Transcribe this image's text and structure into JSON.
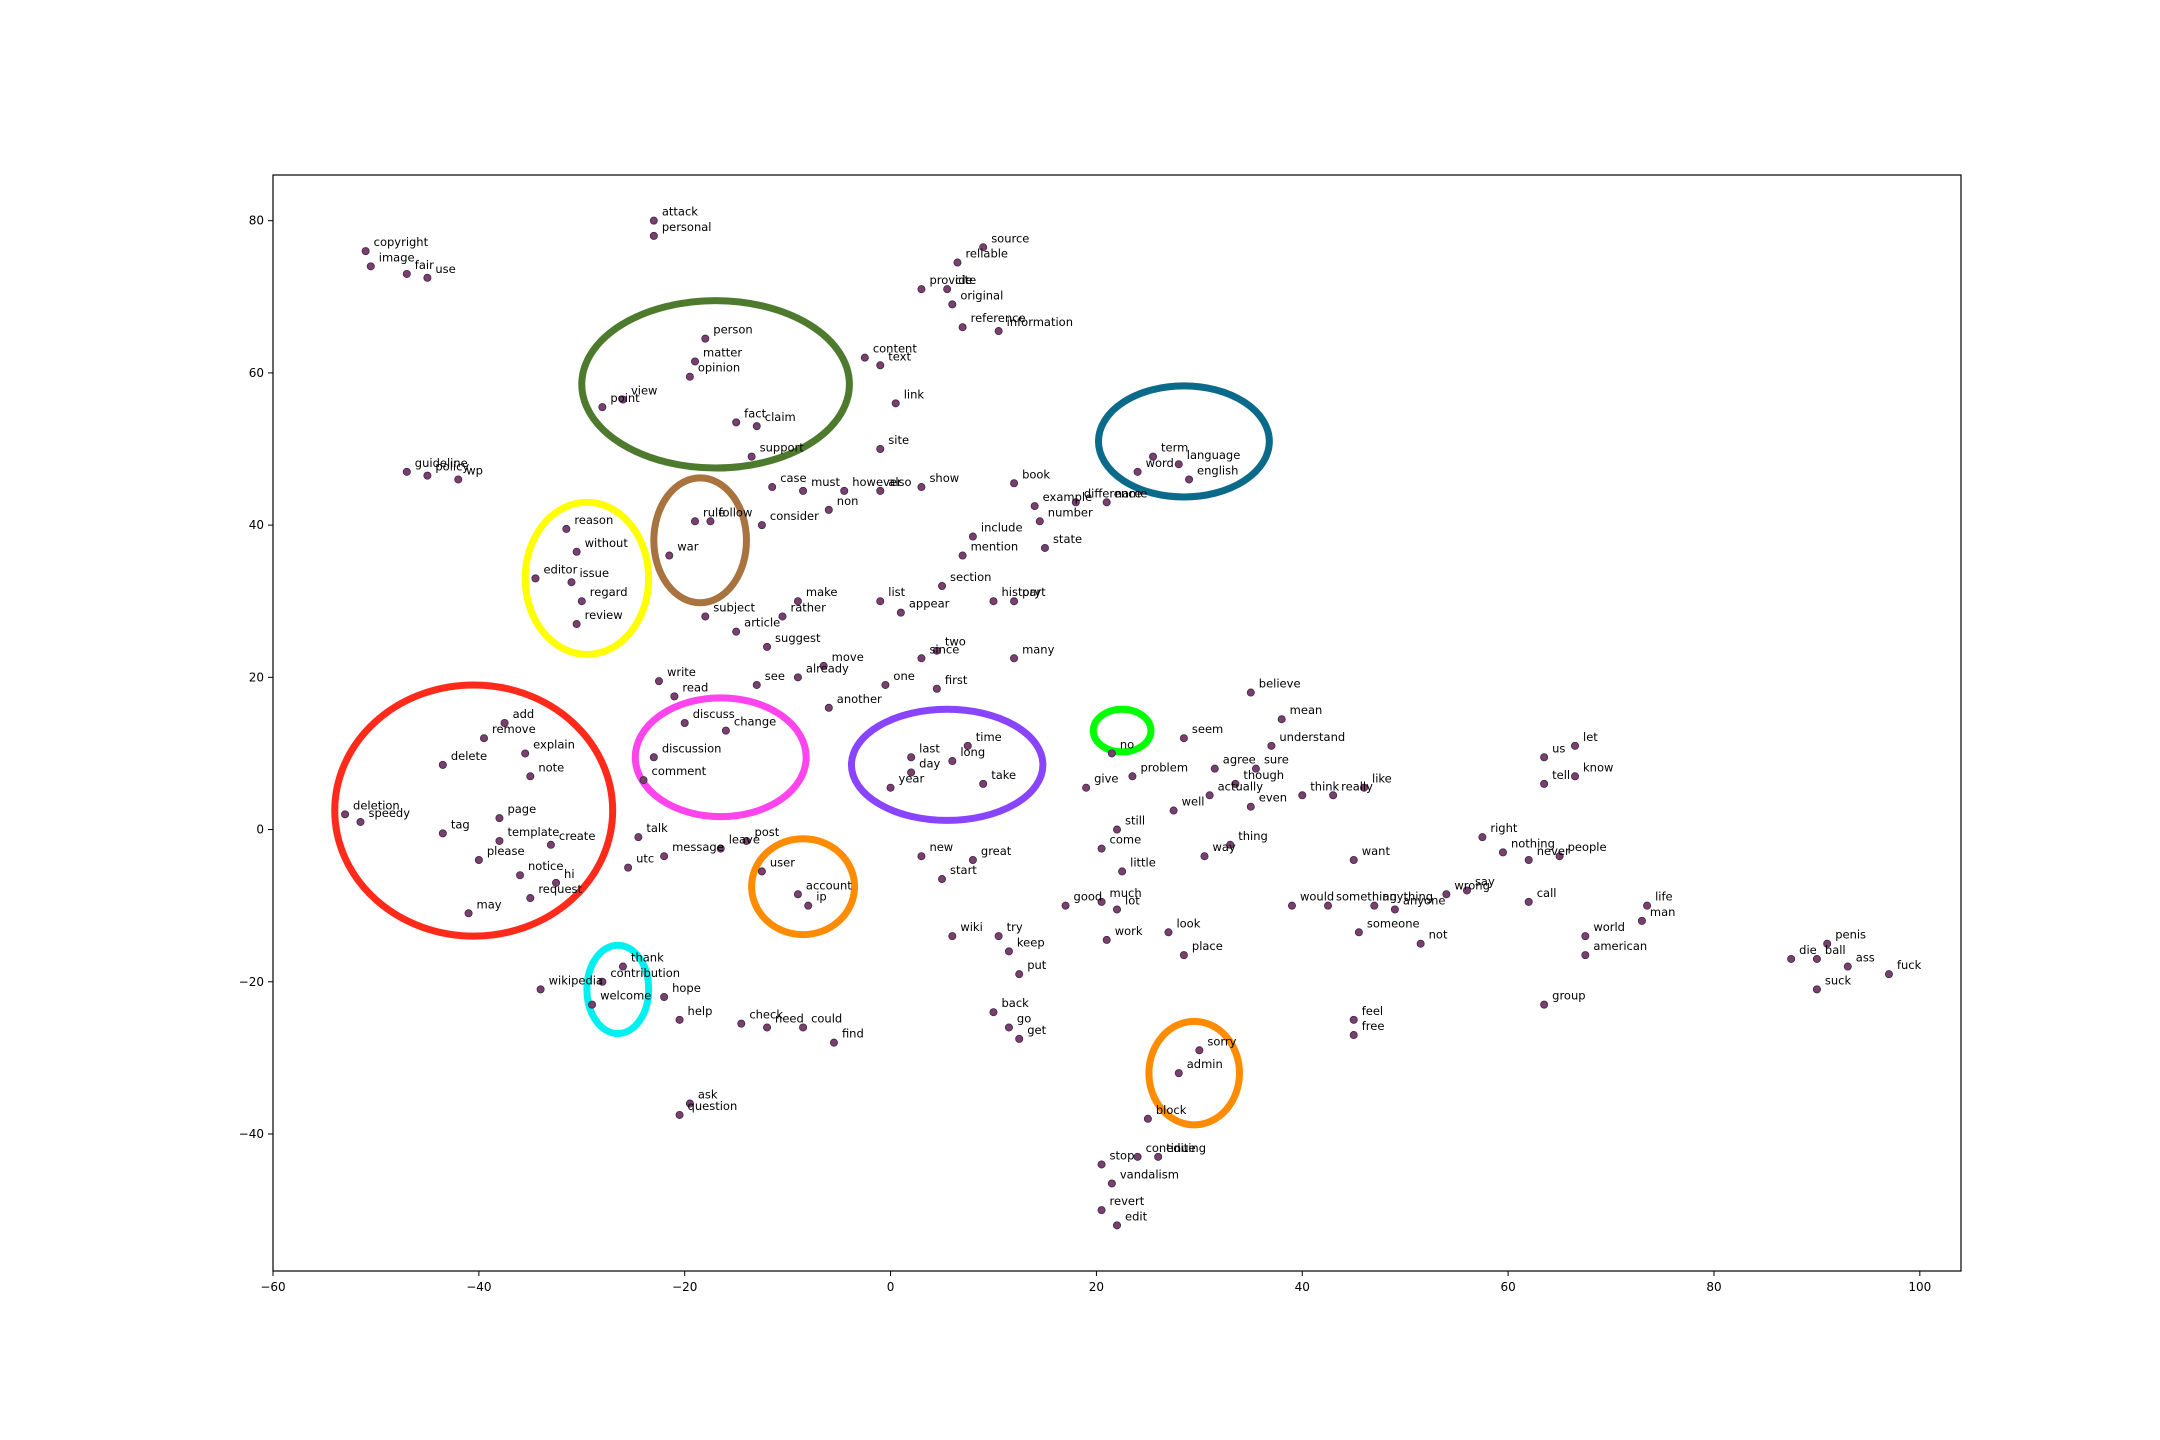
{
  "chart_data": {
    "type": "scatter",
    "title": "",
    "xlabel": "",
    "ylabel": "",
    "xlim": [
      -60,
      104
    ],
    "ylim": [
      -58,
      86
    ],
    "xticks": [
      -60,
      -40,
      -20,
      0,
      20,
      40,
      60,
      80,
      100
    ],
    "yticks": [
      -40,
      -20,
      0,
      20,
      40,
      60,
      80
    ],
    "grid": false,
    "legend": "none",
    "marker_color": "#7b3f6e",
    "points": [
      {
        "word": "copyright",
        "x": -51.0,
        "y": 76.0
      },
      {
        "word": "image",
        "x": -50.5,
        "y": 74.0
      },
      {
        "word": "fair",
        "x": -47.0,
        "y": 73.0
      },
      {
        "word": "use",
        "x": -45.0,
        "y": 72.5
      },
      {
        "word": "attack",
        "x": -23.0,
        "y": 80.0
      },
      {
        "word": "personal",
        "x": -23.0,
        "y": 78.0
      },
      {
        "word": "source",
        "x": 9.0,
        "y": 76.5
      },
      {
        "word": "reliable",
        "x": 6.5,
        "y": 74.5
      },
      {
        "word": "provide",
        "x": 3.0,
        "y": 71.0
      },
      {
        "word": "cite",
        "x": 5.5,
        "y": 71.0
      },
      {
        "word": "original",
        "x": 6.0,
        "y": 69.0
      },
      {
        "word": "reference",
        "x": 7.0,
        "y": 66.0
      },
      {
        "word": "information",
        "x": 10.5,
        "y": 65.5
      },
      {
        "word": "person",
        "x": -18.0,
        "y": 64.5
      },
      {
        "word": "matter",
        "x": -19.0,
        "y": 61.5
      },
      {
        "word": "opinion",
        "x": -19.5,
        "y": 59.5
      },
      {
        "word": "view",
        "x": -26.0,
        "y": 56.5
      },
      {
        "word": "point",
        "x": -28.0,
        "y": 55.5
      },
      {
        "word": "fact",
        "x": -15.0,
        "y": 53.5
      },
      {
        "word": "claim",
        "x": -13.0,
        "y": 53.0
      },
      {
        "word": "support",
        "x": -13.5,
        "y": 49.0
      },
      {
        "word": "content",
        "x": -2.5,
        "y": 62.0
      },
      {
        "word": "text",
        "x": -1.0,
        "y": 61.0
      },
      {
        "word": "link",
        "x": 0.5,
        "y": 56.0
      },
      {
        "word": "site",
        "x": -1.0,
        "y": 50.0
      },
      {
        "word": "guideline",
        "x": -47.0,
        "y": 47.0
      },
      {
        "word": "policy",
        "x": -45.0,
        "y": 46.5
      },
      {
        "word": "wp",
        "x": -42.0,
        "y": 46.0
      },
      {
        "word": "term",
        "x": 25.5,
        "y": 49.0
      },
      {
        "word": "language",
        "x": 28.0,
        "y": 48.0
      },
      {
        "word": "word",
        "x": 24.0,
        "y": 47.0
      },
      {
        "word": "english",
        "x": 29.0,
        "y": 46.0
      },
      {
        "word": "case",
        "x": -11.5,
        "y": 45.0
      },
      {
        "word": "must",
        "x": -8.5,
        "y": 44.5
      },
      {
        "word": "however",
        "x": -4.5,
        "y": 44.5
      },
      {
        "word": "also",
        "x": -1.0,
        "y": 44.5
      },
      {
        "word": "show",
        "x": 3.0,
        "y": 45.0
      },
      {
        "word": "non",
        "x": -6.0,
        "y": 42.0
      },
      {
        "word": "consider",
        "x": -12.5,
        "y": 40.0
      },
      {
        "word": "book",
        "x": 12.0,
        "y": 45.5
      },
      {
        "word": "example",
        "x": 14.0,
        "y": 42.5
      },
      {
        "word": "difference",
        "x": 18.0,
        "y": 43.0
      },
      {
        "word": "name",
        "x": 21.0,
        "y": 43.0
      },
      {
        "word": "number",
        "x": 14.5,
        "y": 40.5
      },
      {
        "word": "include",
        "x": 8.0,
        "y": 38.5
      },
      {
        "word": "mention",
        "x": 7.0,
        "y": 36.0
      },
      {
        "word": "state",
        "x": 15.0,
        "y": 37.0
      },
      {
        "word": "follow",
        "x": -17.5,
        "y": 40.5
      },
      {
        "word": "rule",
        "x": -19.0,
        "y": 40.5
      },
      {
        "word": "war",
        "x": -21.5,
        "y": 36.0
      },
      {
        "word": "reason",
        "x": -31.5,
        "y": 39.5
      },
      {
        "word": "without",
        "x": -30.5,
        "y": 36.5
      },
      {
        "word": "editor",
        "x": -34.5,
        "y": 33.0
      },
      {
        "word": "issue",
        "x": -31.0,
        "y": 32.5
      },
      {
        "word": "regard",
        "x": -30.0,
        "y": 30.0
      },
      {
        "word": "review",
        "x": -30.5,
        "y": 27.0
      },
      {
        "word": "subject",
        "x": -18.0,
        "y": 28.0
      },
      {
        "word": "article",
        "x": -15.0,
        "y": 26.0
      },
      {
        "word": "make",
        "x": -9.0,
        "y": 30.0
      },
      {
        "word": "rather",
        "x": -10.5,
        "y": 28.0
      },
      {
        "word": "suggest",
        "x": -12.0,
        "y": 24.0
      },
      {
        "word": "list",
        "x": -1.0,
        "y": 30.0
      },
      {
        "word": "appear",
        "x": 1.0,
        "y": 28.5
      },
      {
        "word": "section",
        "x": 5.0,
        "y": 32.0
      },
      {
        "word": "history",
        "x": 10.0,
        "y": 30.0
      },
      {
        "word": "part",
        "x": 12.0,
        "y": 30.0
      },
      {
        "word": "two",
        "x": 4.5,
        "y": 23.5
      },
      {
        "word": "since",
        "x": 3.0,
        "y": 22.5
      },
      {
        "word": "many",
        "x": 12.0,
        "y": 22.5
      },
      {
        "word": "move",
        "x": -6.5,
        "y": 21.5
      },
      {
        "word": "already",
        "x": -9.0,
        "y": 20.0
      },
      {
        "word": "see",
        "x": -13.0,
        "y": 19.0
      },
      {
        "word": "one",
        "x": -0.5,
        "y": 19.0
      },
      {
        "word": "first",
        "x": 4.5,
        "y": 18.5
      },
      {
        "word": "another",
        "x": -6.0,
        "y": 16.0
      },
      {
        "word": "write",
        "x": -22.5,
        "y": 19.5
      },
      {
        "word": "read",
        "x": -21.0,
        "y": 17.5
      },
      {
        "word": "discuss",
        "x": -20.0,
        "y": 14.0
      },
      {
        "word": "change",
        "x": -16.0,
        "y": 13.0
      },
      {
        "word": "discussion",
        "x": -23.0,
        "y": 9.5
      },
      {
        "word": "comment",
        "x": -24.0,
        "y": 6.5
      },
      {
        "word": "add",
        "x": -37.5,
        "y": 14.0
      },
      {
        "word": "remove",
        "x": -39.5,
        "y": 12.0
      },
      {
        "word": "explain",
        "x": -35.5,
        "y": 10.0
      },
      {
        "word": "delete",
        "x": -43.5,
        "y": 8.5
      },
      {
        "word": "note",
        "x": -35.0,
        "y": 7.0
      },
      {
        "word": "deletion",
        "x": -53.0,
        "y": 2.0
      },
      {
        "word": "speedy",
        "x": -51.5,
        "y": 1.0
      },
      {
        "word": "page",
        "x": -38.0,
        "y": 1.5
      },
      {
        "word": "tag",
        "x": -43.5,
        "y": -0.5
      },
      {
        "word": "template",
        "x": -38.0,
        "y": -1.5
      },
      {
        "word": "create",
        "x": -33.0,
        "y": -2.0
      },
      {
        "word": "please",
        "x": -40.0,
        "y": -4.0
      },
      {
        "word": "notice",
        "x": -36.0,
        "y": -6.0
      },
      {
        "word": "hi",
        "x": -32.5,
        "y": -7.0
      },
      {
        "word": "request",
        "x": -35.0,
        "y": -9.0
      },
      {
        "word": "may",
        "x": -41.0,
        "y": -11.0
      },
      {
        "word": "talk",
        "x": -24.5,
        "y": -1.0
      },
      {
        "word": "leave",
        "x": -16.5,
        "y": -2.5
      },
      {
        "word": "post",
        "x": -14.0,
        "y": -1.5
      },
      {
        "word": "message",
        "x": -22.0,
        "y": -3.5
      },
      {
        "word": "utc",
        "x": -25.5,
        "y": -5.0
      },
      {
        "word": "user",
        "x": -12.5,
        "y": -5.5
      },
      {
        "word": "account",
        "x": -9.0,
        "y": -8.5
      },
      {
        "word": "ip",
        "x": -8.0,
        "y": -10.0
      },
      {
        "word": "time",
        "x": 7.5,
        "y": 11.0
      },
      {
        "word": "last",
        "x": 2.0,
        "y": 9.5
      },
      {
        "word": "long",
        "x": 6.0,
        "y": 9.0
      },
      {
        "word": "day",
        "x": 2.0,
        "y": 7.5
      },
      {
        "word": "year",
        "x": 0.0,
        "y": 5.5
      },
      {
        "word": "take",
        "x": 9.0,
        "y": 6.0
      },
      {
        "word": "no",
        "x": 21.5,
        "y": 10.0
      },
      {
        "word": "seem",
        "x": 28.5,
        "y": 12.0
      },
      {
        "word": "believe",
        "x": 35.0,
        "y": 18.0
      },
      {
        "word": "mean",
        "x": 38.0,
        "y": 14.5
      },
      {
        "word": "understand",
        "x": 37.0,
        "y": 11.0
      },
      {
        "word": "agree",
        "x": 31.5,
        "y": 8.0
      },
      {
        "word": "sure",
        "x": 35.5,
        "y": 8.0
      },
      {
        "word": "give",
        "x": 19.0,
        "y": 5.5
      },
      {
        "word": "problem",
        "x": 23.5,
        "y": 7.0
      },
      {
        "word": "though",
        "x": 33.5,
        "y": 6.0
      },
      {
        "word": "actually",
        "x": 31.0,
        "y": 4.5
      },
      {
        "word": "even",
        "x": 35.0,
        "y": 3.0
      },
      {
        "word": "well",
        "x": 27.5,
        "y": 2.5
      },
      {
        "word": "think",
        "x": 40.0,
        "y": 4.5
      },
      {
        "word": "really",
        "x": 43.0,
        "y": 4.5
      },
      {
        "word": "like",
        "x": 46.0,
        "y": 5.5
      },
      {
        "word": "still",
        "x": 22.0,
        "y": 0.0
      },
      {
        "word": "come",
        "x": 20.5,
        "y": -2.5
      },
      {
        "word": "thing",
        "x": 33.0,
        "y": -2.0
      },
      {
        "word": "way",
        "x": 30.5,
        "y": -3.5
      },
      {
        "word": "little",
        "x": 22.5,
        "y": -5.5
      },
      {
        "word": "new",
        "x": 3.0,
        "y": -3.5
      },
      {
        "word": "great",
        "x": 8.0,
        "y": -4.0
      },
      {
        "word": "start",
        "x": 5.0,
        "y": -6.5
      },
      {
        "word": "good",
        "x": 17.0,
        "y": -10.0
      },
      {
        "word": "much",
        "x": 20.5,
        "y": -9.5
      },
      {
        "word": "lot",
        "x": 22.0,
        "y": -10.5
      },
      {
        "word": "look",
        "x": 27.0,
        "y": -13.5
      },
      {
        "word": "work",
        "x": 21.0,
        "y": -14.5
      },
      {
        "word": "place",
        "x": 28.5,
        "y": -16.5
      },
      {
        "word": "wiki",
        "x": 6.0,
        "y": -14.0
      },
      {
        "word": "try",
        "x": 10.5,
        "y": -14.0
      },
      {
        "word": "keep",
        "x": 11.5,
        "y": -16.0
      },
      {
        "word": "put",
        "x": 12.5,
        "y": -19.0
      },
      {
        "word": "back",
        "x": 10.0,
        "y": -24.0
      },
      {
        "word": "go",
        "x": 11.5,
        "y": -26.0
      },
      {
        "word": "get",
        "x": 12.5,
        "y": -27.5
      },
      {
        "word": "want",
        "x": 45.0,
        "y": -4.0
      },
      {
        "word": "would",
        "x": 39.0,
        "y": -10.0
      },
      {
        "word": "something",
        "x": 42.5,
        "y": -10.0
      },
      {
        "word": "anything",
        "x": 47.0,
        "y": -10.0
      },
      {
        "word": "anyone",
        "x": 49.0,
        "y": -10.5
      },
      {
        "word": "wrong",
        "x": 54.0,
        "y": -8.5
      },
      {
        "word": "say",
        "x": 56.0,
        "y": -8.0
      },
      {
        "word": "someone",
        "x": 45.5,
        "y": -13.5
      },
      {
        "word": "not",
        "x": 51.5,
        "y": -15.0
      },
      {
        "word": "right",
        "x": 57.5,
        "y": -1.0
      },
      {
        "word": "nothing",
        "x": 59.5,
        "y": -3.0
      },
      {
        "word": "never",
        "x": 62.0,
        "y": -4.0
      },
      {
        "word": "people",
        "x": 65.0,
        "y": -3.5
      },
      {
        "word": "call",
        "x": 62.0,
        "y": -9.5
      },
      {
        "word": "let",
        "x": 66.5,
        "y": 11.0
      },
      {
        "word": "us",
        "x": 63.5,
        "y": 9.5
      },
      {
        "word": "know",
        "x": 66.5,
        "y": 7.0
      },
      {
        "word": "tell",
        "x": 63.5,
        "y": 6.0
      },
      {
        "word": "life",
        "x": 73.5,
        "y": -10.0
      },
      {
        "word": "man",
        "x": 73.0,
        "y": -12.0
      },
      {
        "word": "world",
        "x": 67.5,
        "y": -14.0
      },
      {
        "word": "american",
        "x": 67.5,
        "y": -16.5
      },
      {
        "word": "group",
        "x": 63.5,
        "y": -23.0
      },
      {
        "word": "penis",
        "x": 91.0,
        "y": -15.0
      },
      {
        "word": "die",
        "x": 87.5,
        "y": -17.0
      },
      {
        "word": "ball",
        "x": 90.0,
        "y": -17.0
      },
      {
        "word": "ass",
        "x": 93.0,
        "y": -18.0
      },
      {
        "word": "fuck",
        "x": 97.0,
        "y": -19.0
      },
      {
        "word": "suck",
        "x": 90.0,
        "y": -21.0
      },
      {
        "word": "thank",
        "x": -26.0,
        "y": -18.0
      },
      {
        "word": "contribution",
        "x": -28.0,
        "y": -20.0
      },
      {
        "word": "wikipedia",
        "x": -34.0,
        "y": -21.0
      },
      {
        "word": "welcome",
        "x": -29.0,
        "y": -23.0
      },
      {
        "word": "hope",
        "x": -22.0,
        "y": -22.0
      },
      {
        "word": "help",
        "x": -20.5,
        "y": -25.0
      },
      {
        "word": "check",
        "x": -14.5,
        "y": -25.5
      },
      {
        "word": "need",
        "x": -12.0,
        "y": -26.0
      },
      {
        "word": "could",
        "x": -8.5,
        "y": -26.0
      },
      {
        "word": "find",
        "x": -5.5,
        "y": -28.0
      },
      {
        "word": "ask",
        "x": -19.5,
        "y": -36.0
      },
      {
        "word": "question",
        "x": -20.5,
        "y": -37.5
      },
      {
        "word": "feel",
        "x": 45.0,
        "y": -25.0
      },
      {
        "word": "free",
        "x": 45.0,
        "y": -27.0
      },
      {
        "word": "sorry",
        "x": 30.0,
        "y": -29.0
      },
      {
        "word": "admin",
        "x": 28.0,
        "y": -32.0
      },
      {
        "word": "block",
        "x": 25.0,
        "y": -38.0
      },
      {
        "word": "stop",
        "x": 20.5,
        "y": -44.0
      },
      {
        "word": "continue",
        "x": 24.0,
        "y": -43.0
      },
      {
        "word": "editing",
        "x": 26.0,
        "y": -43.0
      },
      {
        "word": "vandalism",
        "x": 21.5,
        "y": -46.5
      },
      {
        "word": "revert",
        "x": 20.5,
        "y": -50.0
      },
      {
        "word": "edit",
        "x": 22.0,
        "y": -52.0
      }
    ],
    "highlight_circles": [
      {
        "color": "#4e7a2e",
        "cx": -17,
        "cy": 58.5,
        "rx": 13,
        "ry": 11
      },
      {
        "color": "#0a6a8a",
        "cx": 28.5,
        "cy": 51,
        "rx": 8.3,
        "ry": 7.3
      },
      {
        "color": "#a8733f",
        "cx": -18.5,
        "cy": 38,
        "rx": 4.5,
        "ry": 8.2
      },
      {
        "color": "#ffff00",
        "cx": -29.5,
        "cy": 33,
        "rx": 6,
        "ry": 10
      },
      {
        "color": "#ff2a1a",
        "cx": -40.5,
        "cy": 2.5,
        "rx": 13.5,
        "ry": 16.5
      },
      {
        "color": "#ff44ee",
        "cx": -16.5,
        "cy": 9.5,
        "rx": 8.3,
        "ry": 7.8
      },
      {
        "color": "#8844ff",
        "cx": 5.5,
        "cy": 8.5,
        "rx": 9.3,
        "ry": 7.3
      },
      {
        "color": "#00ff00",
        "cx": 22.5,
        "cy": 13,
        "rx": 2.8,
        "ry": 2.8
      },
      {
        "color": "#ff8c00",
        "cx": -8.5,
        "cy": -7.5,
        "rx": 5,
        "ry": 6.3
      },
      {
        "color": "#00f0f0",
        "cx": -26.5,
        "cy": -21,
        "rx": 3,
        "ry": 5.8
      },
      {
        "color": "#ff8c00",
        "cx": 29.5,
        "cy": -32,
        "rx": 4.4,
        "ry": 6.8
      }
    ]
  }
}
